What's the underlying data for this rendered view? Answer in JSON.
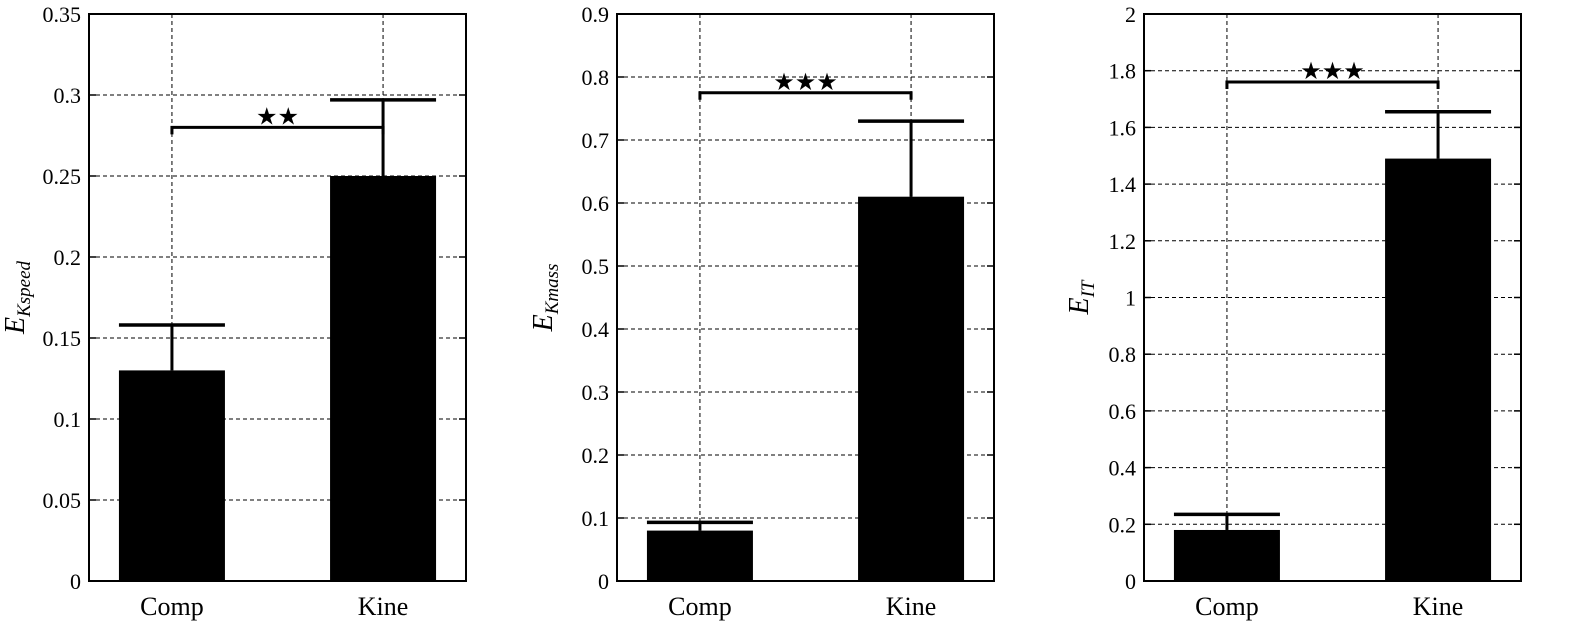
{
  "chart_data": [
    {
      "type": "bar",
      "categories": [
        "Comp",
        "Kine"
      ],
      "values": [
        0.13,
        0.25
      ],
      "errors": [
        0.028,
        0.047
      ],
      "ylabel_main": "E",
      "ylabel_sub": "Kspeed",
      "ylim": [
        0,
        0.35
      ],
      "yticks": [
        0,
        0.05,
        0.1,
        0.15,
        0.2,
        0.25,
        0.3,
        0.35
      ],
      "ytick_labels": [
        "0",
        "0.05",
        "0.1",
        "0.15",
        "0.2",
        "0.25",
        "0.3",
        "0.35"
      ],
      "significance": {
        "between": [
          0,
          1
        ],
        "y": 0.28,
        "label": "★★"
      },
      "grid": true,
      "bar_color": "#000000"
    },
    {
      "type": "bar",
      "categories": [
        "Comp",
        "Kine"
      ],
      "values": [
        0.08,
        0.61
      ],
      "errors": [
        0.013,
        0.12
      ],
      "ylabel_main": "E",
      "ylabel_sub": "Kmass",
      "ylim": [
        0,
        0.9
      ],
      "yticks": [
        0,
        0.1,
        0.2,
        0.3,
        0.4,
        0.5,
        0.6,
        0.7,
        0.8,
        0.9
      ],
      "ytick_labels": [
        "0",
        "0.1",
        "0.2",
        "0.3",
        "0.4",
        "0.5",
        "0.6",
        "0.7",
        "0.8",
        "0.9"
      ],
      "significance": {
        "between": [
          0,
          1
        ],
        "y": 0.775,
        "label": "★★★"
      },
      "grid": true,
      "bar_color": "#000000"
    },
    {
      "type": "bar",
      "categories": [
        "Comp",
        "Kine"
      ],
      "values": [
        0.18,
        1.49
      ],
      "errors": [
        0.055,
        0.165
      ],
      "ylabel_main": "E",
      "ylabel_sub": "IT",
      "ylim": [
        0,
        2
      ],
      "yticks": [
        0,
        0.2,
        0.4,
        0.6,
        0.8,
        1,
        1.2,
        1.4,
        1.6,
        1.8,
        2
      ],
      "ytick_labels": [
        "0",
        "0.2",
        "0.4",
        "0.6",
        "0.8",
        "1",
        "1.2",
        "1.4",
        "1.6",
        "1.8",
        "2"
      ],
      "significance": {
        "between": [
          0,
          1
        ],
        "y": 1.76,
        "label": "★★★"
      },
      "grid": true,
      "bar_color": "#000000"
    }
  ]
}
